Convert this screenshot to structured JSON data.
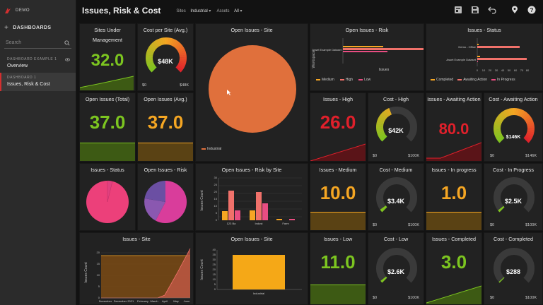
{
  "app": {
    "brand": "DEMO",
    "page_title": "Issues, Risk & Cost"
  },
  "sidebar": {
    "header": "DASHBOARDS",
    "search_placeholder": "Search",
    "items": [
      {
        "caption": "DASHBOARD EXAMPLE 1",
        "label": "Overview",
        "active": false
      },
      {
        "caption": "DASHBOARD 1",
        "label": "Issues, Risk & Cost",
        "active": true
      }
    ]
  },
  "filters": [
    {
      "name": "Sites",
      "value": "Industrial"
    },
    {
      "name": "Assets",
      "value": "All"
    }
  ],
  "toolbar": {
    "icons": [
      "grid-view-icon",
      "save-icon",
      "undo-icon",
      "location-pin-icon",
      "help-icon"
    ]
  },
  "colors": {
    "green": "#7cc520",
    "orange": "#f5a623",
    "red": "#e0202b",
    "pie_orange": "#e0703c",
    "pink": "#ec407a",
    "purple": "#7b52ab",
    "bar_orange": "#f6a623",
    "bar_salmon": "#f0716a",
    "bar_pink": "#e94d82"
  },
  "cards": {
    "sites_under_management": {
      "title1": "Sites Under",
      "title2": "Management",
      "value": "32.0"
    },
    "cost_per_site": {
      "title": "Cost per Site (Avg.)",
      "value": "$48K",
      "min": "$0",
      "max": "$48K",
      "fraction": 1.0
    },
    "open_issues_site_pie": {
      "title": "Open Issues - Site",
      "legend": "Industrial"
    },
    "open_issues_risk": {
      "title": "Open Issues - Risk",
      "ylabel": "Workspace",
      "xlabel": "Issues",
      "category": "Asset Example Dataset",
      "legend": [
        "Medium",
        "High",
        "Low"
      ]
    },
    "issues_status_bar": {
      "title": "Issues - Status",
      "categories": [
        "Demo - Office",
        "Asset Example Dataset"
      ],
      "ticks": [
        "0",
        "10",
        "20",
        "30",
        "40",
        "50",
        "60",
        "70",
        "80"
      ],
      "legend": [
        "Completed",
        "Awaiting Action",
        "In Progress"
      ]
    },
    "open_issues_total": {
      "title": "Open Issues (Total)",
      "value": "37.0"
    },
    "open_issues_avg": {
      "title": "Open Issues (Avg.)",
      "value": "37.0"
    },
    "issues_high": {
      "title": "Issues - High",
      "value": "26.0"
    },
    "cost_high": {
      "title": "Cost - High",
      "value": "$42K",
      "min": "$0",
      "max": "$100K",
      "fraction": 0.42
    },
    "issues_awaiting": {
      "title": "Issues - Awaiting Action",
      "value": "80.0"
    },
    "cost_awaiting": {
      "title": "Cost - Awaiting Action",
      "value": "$146K",
      "min": "$0",
      "max": "$146K",
      "fraction": 1.0
    },
    "issues_status_pie": {
      "title": "Issues - Status"
    },
    "open_issues_risk_pie": {
      "title": "Open Issues - Risk"
    },
    "risk_by_site": {
      "title": "Open Issues - Risk by Site",
      "ylabel": "Issues Count",
      "ticks": [
        "0",
        "5",
        "10",
        "15",
        "20",
        "25",
        "30"
      ]
    },
    "issues_medium": {
      "title": "Issues - Medium",
      "value": "10.0"
    },
    "cost_medium": {
      "title": "Cost - Medium",
      "value": "$3.4K",
      "min": "$0",
      "max": "$100K",
      "fraction": 0.034
    },
    "issues_in_progress": {
      "title": "Issues - In progress",
      "value": "1.0"
    },
    "cost_in_progress": {
      "title": "Cost - In Progress",
      "value": "$2.5K",
      "min": "$0",
      "max": "$100K",
      "fraction": 0.025
    },
    "issues_site_area": {
      "title": "Issues - Site",
      "ylabel": "Issues Count",
      "ticks": [
        "0",
        "5",
        "10",
        "15",
        "20"
      ],
      "months": [
        "November",
        "December 2021",
        "February",
        "March",
        "April",
        "May",
        "June"
      ]
    },
    "open_issues_site_bar": {
      "title": "Open Issues - Site",
      "ylabel": "Issues Count",
      "ticks": [
        "0",
        "5",
        "10",
        "15",
        "20",
        "25",
        "30",
        "35",
        "40"
      ],
      "category": "Industrial"
    },
    "issues_low": {
      "title": "Issues - Low",
      "value": "11.0"
    },
    "cost_low": {
      "title": "Cost - Low",
      "value": "$2.6K",
      "min": "$0",
      "max": "$100K",
      "fraction": 0.026
    },
    "issues_completed": {
      "title": "Issues - Completed",
      "value": "3.0"
    },
    "cost_completed": {
      "title": "Cost - Completed",
      "value": "$288",
      "min": "$0",
      "max": "$100K",
      "fraction": 0.003
    }
  },
  "chart_data": [
    {
      "type": "pie",
      "title": "Open Issues - Site",
      "labels": [
        "Industrial"
      ],
      "values": [
        100
      ]
    },
    {
      "type": "bar",
      "title": "Open Issues - Risk",
      "orientation": "horizontal",
      "categories": [
        "Asset Example Dataset"
      ],
      "series": [
        {
          "name": "Medium",
          "values": [
            10
          ]
        },
        {
          "name": "High",
          "values": [
            26
          ]
        },
        {
          "name": "Low",
          "values": [
            11
          ]
        }
      ]
    },
    {
      "type": "bar",
      "title": "Issues - Status",
      "orientation": "horizontal",
      "categories": [
        "Demo - Office",
        "Asset Example Dataset"
      ],
      "xlim": [
        0,
        80
      ],
      "series": [
        {
          "name": "Completed",
          "values": [
            2,
            3
          ]
        },
        {
          "name": "Awaiting Action",
          "values": [
            42,
            80
          ]
        },
        {
          "name": "In Progress",
          "values": [
            0,
            1
          ]
        }
      ]
    },
    {
      "type": "pie",
      "title": "Issues - Status",
      "labels": [
        "Awaiting Action",
        "In Progress",
        "Completed"
      ],
      "values": [
        80,
        1,
        3
      ]
    },
    {
      "type": "pie",
      "title": "Open Issues - Risk",
      "labels": [
        "High",
        "Medium",
        "Low"
      ],
      "values": [
        26,
        10,
        11
      ]
    },
    {
      "type": "bar",
      "title": "Open Issues - Risk by Site",
      "categories": [
        "123 Ba",
        "Indust",
        "Farm"
      ],
      "ylim": [
        0,
        30
      ],
      "series": [
        {
          "name": "Medium",
          "values": [
            6,
            7,
            1
          ]
        },
        {
          "name": "High",
          "values": [
            21,
            20,
            0
          ]
        },
        {
          "name": "Low",
          "values": [
            7,
            12,
            1
          ]
        }
      ]
    },
    {
      "type": "area",
      "title": "Issues - Site",
      "x": [
        "November",
        "December 2021",
        "February",
        "March",
        "April",
        "May",
        "June"
      ],
      "ylim": [
        0,
        20
      ],
      "series": [
        {
          "values": [
            17,
            17,
            17,
            17,
            17,
            17,
            17
          ]
        },
        {
          "values": [
            0,
            0,
            0,
            0,
            2,
            12,
            21
          ]
        }
      ]
    },
    {
      "type": "bar",
      "title": "Open Issues - Site",
      "categories": [
        "Industrial"
      ],
      "values": [
        37
      ],
      "ylim": [
        0,
        40
      ]
    }
  ]
}
